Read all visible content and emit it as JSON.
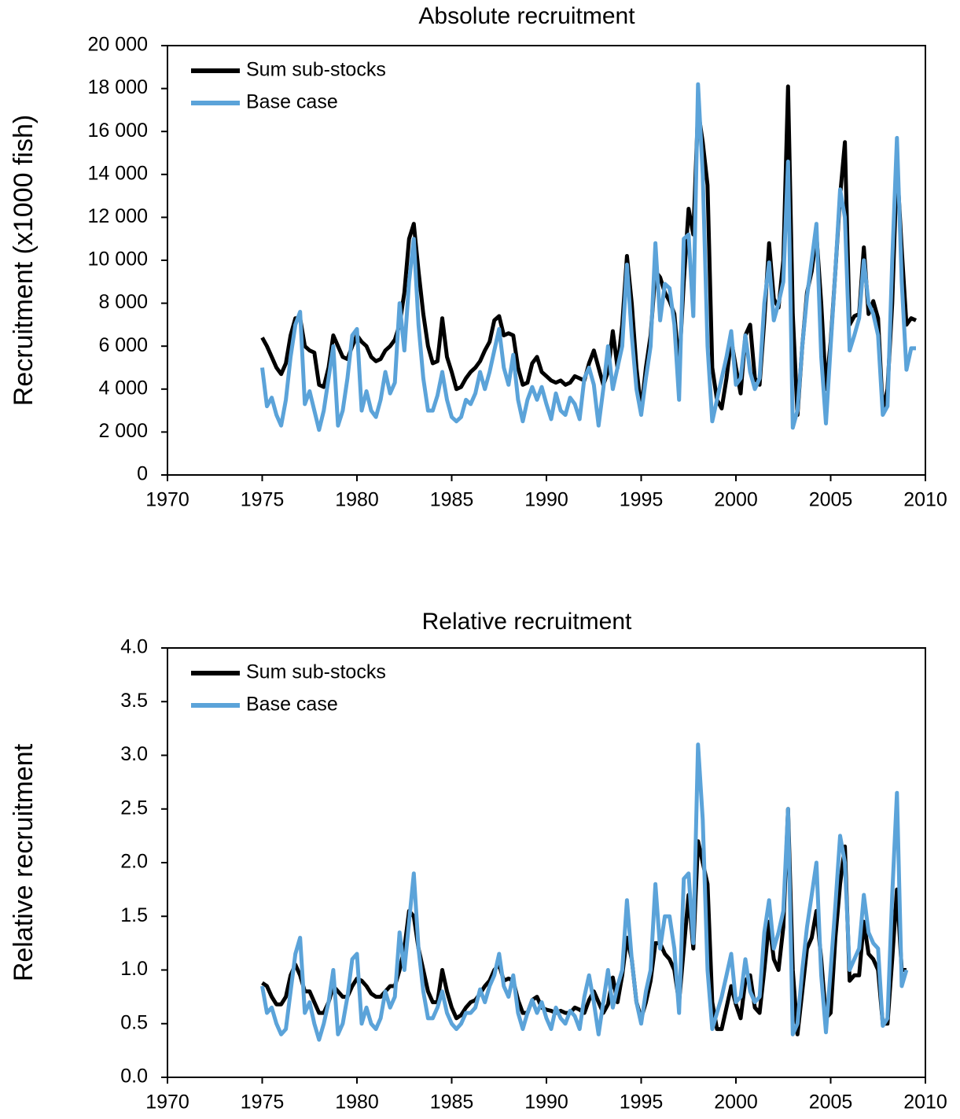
{
  "chart_data": [
    {
      "type": "line",
      "title": "Absolute recruitment",
      "y_label": "Recruitment (x1000 fish)",
      "x": [
        1975,
        1975.25,
        1975.5,
        1975.75,
        1976,
        1976.25,
        1976.5,
        1976.75,
        1977,
        1977.25,
        1977.5,
        1977.75,
        1978,
        1978.25,
        1978.5,
        1978.75,
        1979,
        1979.25,
        1979.5,
        1979.75,
        1980,
        1980.25,
        1980.5,
        1980.75,
        1981,
        1981.25,
        1981.5,
        1981.75,
        1982,
        1982.25,
        1982.5,
        1982.75,
        1983,
        1983.25,
        1983.5,
        1983.75,
        1984,
        1984.25,
        1984.5,
        1984.75,
        1985,
        1985.25,
        1985.5,
        1985.75,
        1986,
        1986.25,
        1986.5,
        1986.75,
        1987,
        1987.25,
        1987.5,
        1987.75,
        1988,
        1988.25,
        1988.5,
        1988.75,
        1989,
        1989.25,
        1989.5,
        1989.75,
        1990,
        1990.25,
        1990.5,
        1990.75,
        1991,
        1991.25,
        1991.5,
        1991.75,
        1992,
        1992.25,
        1992.5,
        1992.75,
        1993,
        1993.25,
        1993.5,
        1993.75,
        1994,
        1994.25,
        1994.5,
        1994.75,
        1995,
        1995.25,
        1995.5,
        1995.75,
        1996,
        1996.25,
        1996.5,
        1996.75,
        1997,
        1997.25,
        1997.5,
        1997.75,
        1998,
        1998.25,
        1998.5,
        1998.75,
        1999,
        1999.25,
        1999.5,
        1999.75,
        2000,
        2000.25,
        2000.5,
        2000.75,
        2001,
        2001.25,
        2001.5,
        2001.75,
        2002,
        2002.25,
        2002.5,
        2002.75,
        2003,
        2003.25,
        2003.5,
        2003.75,
        2004,
        2004.25,
        2004.5,
        2004.75,
        2005,
        2005.25,
        2005.5,
        2005.75,
        2006,
        2006.25,
        2006.5,
        2006.75,
        2007,
        2007.25,
        2007.5,
        2007.75,
        2008,
        2008.25,
        2008.5,
        2008.75,
        2009,
        2009.25,
        2009.5
      ],
      "series": [
        {
          "name": "Sum sub-stocks",
          "color": "#000000",
          "values": [
            6400,
            6000,
            5500,
            5000,
            4700,
            5200,
            6500,
            7300,
            7300,
            6000,
            5800,
            5700,
            4200,
            4100,
            5000,
            6500,
            6000,
            5500,
            5400,
            6000,
            6500,
            6200,
            6000,
            5500,
            5300,
            5400,
            5800,
            6000,
            6300,
            7000,
            8500,
            11000,
            11700,
            9500,
            7500,
            6000,
            5200,
            5300,
            7300,
            5500,
            4800,
            4000,
            4100,
            4500,
            4800,
            5000,
            5300,
            5800,
            6200,
            7200,
            7400,
            6500,
            6600,
            6500,
            5000,
            4200,
            4300,
            5200,
            5500,
            4800,
            4600,
            4400,
            4300,
            4400,
            4200,
            4300,
            4600,
            4500,
            4400,
            5200,
            5800,
            5000,
            4200,
            4800,
            6700,
            5000,
            7000,
            10200,
            8000,
            5000,
            3000,
            5000,
            6500,
            9500,
            9200,
            8500,
            8100,
            7500,
            5000,
            9000,
            12400,
            11200,
            17000,
            15500,
            13500,
            5000,
            3500,
            3100,
            4500,
            6300,
            5000,
            3800,
            6500,
            7000,
            4500,
            4200,
            7200,
            10800,
            8200,
            7800,
            10000,
            18100,
            7500,
            2800,
            6000,
            8500,
            9500,
            11200,
            8000,
            4000,
            6200,
            9500,
            13000,
            15500,
            7000,
            7400,
            7500,
            10600,
            7500,
            8100,
            7300,
            3000,
            4000,
            8000,
            14500,
            10500,
            7000,
            7300,
            7200
          ]
        },
        {
          "name": "Base case",
          "color": "#5ba3d9",
          "values": [
            5000,
            3200,
            3600,
            2800,
            2300,
            3500,
            5500,
            7000,
            7600,
            3300,
            3900,
            3000,
            2100,
            3000,
            4500,
            6000,
            2300,
            3000,
            4500,
            6500,
            6800,
            3000,
            3900,
            3000,
            2700,
            3500,
            4800,
            3800,
            4300,
            8000,
            5800,
            9000,
            11000,
            7000,
            4500,
            3000,
            3000,
            3700,
            4800,
            3500,
            2700,
            2500,
            2700,
            3500,
            3300,
            3800,
            4800,
            4000,
            4800,
            5800,
            6800,
            5000,
            4200,
            5600,
            3500,
            2500,
            3500,
            4100,
            3500,
            4100,
            3300,
            2600,
            3800,
            3000,
            2800,
            3600,
            3300,
            2600,
            4500,
            5000,
            4200,
            2300,
            4000,
            6000,
            4000,
            5000,
            6000,
            9800,
            6500,
            4000,
            2800,
            4500,
            6000,
            10800,
            7200,
            8900,
            8700,
            7000,
            3500,
            11000,
            11200,
            7400,
            18200,
            14000,
            6000,
            2500,
            3500,
            4500,
            5500,
            6700,
            4200,
            4500,
            6500,
            4800,
            4000,
            4500,
            8000,
            9900,
            7200,
            8000,
            9000,
            14600,
            2200,
            3000,
            6000,
            8300,
            10000,
            11700,
            5500,
            2400,
            6000,
            9500,
            13300,
            12000,
            5800,
            6500,
            7300,
            10000,
            8000,
            7500,
            6500,
            2800,
            3200,
            10000,
            15700,
            9000,
            4900,
            5900,
            5900
          ]
        }
      ],
      "xlim": [
        1970,
        2010
      ],
      "xticks": [
        1970,
        1975,
        1980,
        1985,
        1990,
        1995,
        2000,
        2005,
        2010
      ],
      "ylim": [
        0,
        20000
      ],
      "yticks": [
        0,
        {
          "value": 2000,
          "label": "2 000"
        },
        {
          "value": 4000,
          "label": "4 000"
        },
        {
          "value": 6000,
          "label": "6 000"
        },
        {
          "value": 8000,
          "label": "8 000"
        },
        {
          "value": 10000,
          "label": "10 000"
        },
        {
          "value": 12000,
          "label": "12 000"
        },
        {
          "value": 14000,
          "label": "14 000"
        },
        {
          "value": 16000,
          "label": "16 000"
        },
        {
          "value": 18000,
          "label": "18 000"
        },
        {
          "value": 20000,
          "label": "20 000"
        }
      ],
      "legend": "upper left",
      "grid": false
    },
    {
      "type": "line",
      "title": "Relative recruitment",
      "y_label": "Relative recruitment",
      "x": [
        1975,
        1975.25,
        1975.5,
        1975.75,
        1976,
        1976.25,
        1976.5,
        1976.75,
        1977,
        1977.25,
        1977.5,
        1977.75,
        1978,
        1978.25,
        1978.5,
        1978.75,
        1979,
        1979.25,
        1979.5,
        1979.75,
        1980,
        1980.25,
        1980.5,
        1980.75,
        1981,
        1981.25,
        1981.5,
        1981.75,
        1982,
        1982.25,
        1982.5,
        1982.75,
        1983,
        1983.25,
        1983.5,
        1983.75,
        1984,
        1984.25,
        1984.5,
        1984.75,
        1985,
        1985.25,
        1985.5,
        1985.75,
        1986,
        1986.25,
        1986.5,
        1986.75,
        1987,
        1987.25,
        1987.5,
        1987.75,
        1988,
        1988.25,
        1988.5,
        1988.75,
        1989,
        1989.25,
        1989.5,
        1989.75,
        1990,
        1990.25,
        1990.5,
        1990.75,
        1991,
        1991.25,
        1991.5,
        1991.75,
        1992,
        1992.25,
        1992.5,
        1992.75,
        1993,
        1993.25,
        1993.5,
        1993.75,
        1994,
        1994.25,
        1994.5,
        1994.75,
        1995,
        1995.25,
        1995.5,
        1995.75,
        1996,
        1996.25,
        1996.5,
        1996.75,
        1997,
        1997.25,
        1997.5,
        1997.75,
        1998,
        1998.25,
        1998.5,
        1998.75,
        1999,
        1999.25,
        1999.5,
        1999.75,
        2000,
        2000.25,
        2000.5,
        2000.75,
        2001,
        2001.25,
        2001.5,
        2001.75,
        2002,
        2002.25,
        2002.5,
        2002.75,
        2003,
        2003.25,
        2003.5,
        2003.75,
        2004,
        2004.25,
        2004.5,
        2004.75,
        2005,
        2005.25,
        2005.5,
        2005.75,
        2006,
        2006.25,
        2006.5,
        2006.75,
        2007,
        2007.25,
        2007.5,
        2007.75,
        2008,
        2008.25,
        2008.5,
        2008.75,
        2009
      ],
      "series": [
        {
          "name": "Sum sub-stocks",
          "color": "#000000",
          "values": [
            0.88,
            0.85,
            0.75,
            0.68,
            0.68,
            0.75,
            0.95,
            1.05,
            0.95,
            0.8,
            0.8,
            0.7,
            0.6,
            0.6,
            0.7,
            0.85,
            0.8,
            0.75,
            0.75,
            0.85,
            0.92,
            0.9,
            0.85,
            0.78,
            0.75,
            0.75,
            0.8,
            0.85,
            0.85,
            1.0,
            1.2,
            1.55,
            1.5,
            1.2,
            1.0,
            0.8,
            0.7,
            0.7,
            1.0,
            0.8,
            0.65,
            0.55,
            0.58,
            0.65,
            0.7,
            0.72,
            0.78,
            0.85,
            0.9,
            1.0,
            1.05,
            0.9,
            0.92,
            0.9,
            0.72,
            0.6,
            0.6,
            0.72,
            0.75,
            0.65,
            0.63,
            0.62,
            0.6,
            0.62,
            0.6,
            0.6,
            0.65,
            0.63,
            0.6,
            0.72,
            0.8,
            0.7,
            0.6,
            0.68,
            0.93,
            0.7,
            0.95,
            1.3,
            1.1,
            0.7,
            0.55,
            0.7,
            0.9,
            1.25,
            1.25,
            1.15,
            1.1,
            1.0,
            0.7,
            1.2,
            1.7,
            1.2,
            2.2,
            2.0,
            1.8,
            0.7,
            0.45,
            0.45,
            0.65,
            0.85,
            0.68,
            0.55,
            0.9,
            0.95,
            0.65,
            0.6,
            1.0,
            1.45,
            1.1,
            1.0,
            1.4,
            2.5,
            1.0,
            0.4,
            0.8,
            1.2,
            1.3,
            1.55,
            1.1,
            0.55,
            0.6,
            1.3,
            1.8,
            2.15,
            0.9,
            0.95,
            0.95,
            1.45,
            1.15,
            1.1,
            1.0,
            0.5,
            0.5,
            1.1,
            1.75,
            1.0,
            1.0
          ]
        },
        {
          "name": "Base case",
          "color": "#5ba3d9",
          "values": [
            0.85,
            0.6,
            0.65,
            0.5,
            0.4,
            0.45,
            0.8,
            1.15,
            1.3,
            0.6,
            0.7,
            0.5,
            0.35,
            0.5,
            0.7,
            1.0,
            0.4,
            0.5,
            0.75,
            1.1,
            1.15,
            0.5,
            0.65,
            0.5,
            0.45,
            0.55,
            0.8,
            0.65,
            0.75,
            1.35,
            1.0,
            1.45,
            1.9,
            1.2,
            0.8,
            0.55,
            0.55,
            0.65,
            0.8,
            0.6,
            0.5,
            0.45,
            0.5,
            0.6,
            0.6,
            0.65,
            0.82,
            0.7,
            0.85,
            0.95,
            1.15,
            0.85,
            0.75,
            0.95,
            0.6,
            0.45,
            0.6,
            0.72,
            0.6,
            0.7,
            0.55,
            0.45,
            0.65,
            0.55,
            0.5,
            0.62,
            0.57,
            0.45,
            0.75,
            0.95,
            0.7,
            0.4,
            0.7,
            1.0,
            0.65,
            0.85,
            1.0,
            1.65,
            1.1,
            0.7,
            0.5,
            0.8,
            1.0,
            1.8,
            1.2,
            1.5,
            1.5,
            1.2,
            0.6,
            1.85,
            1.9,
            1.25,
            3.1,
            2.4,
            1.0,
            0.45,
            0.6,
            0.75,
            0.95,
            1.15,
            0.7,
            0.75,
            1.1,
            0.8,
            0.7,
            0.75,
            1.35,
            1.65,
            1.2,
            1.35,
            1.55,
            2.5,
            0.4,
            0.5,
            1.0,
            1.4,
            1.7,
            2.0,
            0.95,
            0.42,
            1.0,
            1.6,
            2.25,
            2.0,
            1.0,
            1.1,
            1.2,
            1.7,
            1.35,
            1.25,
            1.2,
            0.48,
            0.55,
            1.7,
            2.65,
            0.85,
            1.0
          ]
        }
      ],
      "xlim": [
        1970,
        2010
      ],
      "xticks": [
        1970,
        1975,
        1980,
        1985,
        1990,
        1995,
        2000,
        2005,
        2010
      ],
      "ylim": [
        0,
        4
      ],
      "yticks": [
        {
          "value": 0,
          "label": "0.0"
        },
        0.5,
        {
          "value": 1,
          "label": "1.0"
        },
        1.5,
        {
          "value": 2,
          "label": "2.0"
        },
        2.5,
        {
          "value": 3,
          "label": "3.0"
        },
        3.5,
        {
          "value": 4,
          "label": "4.0"
        }
      ],
      "legend": "upper left",
      "grid": false
    }
  ]
}
